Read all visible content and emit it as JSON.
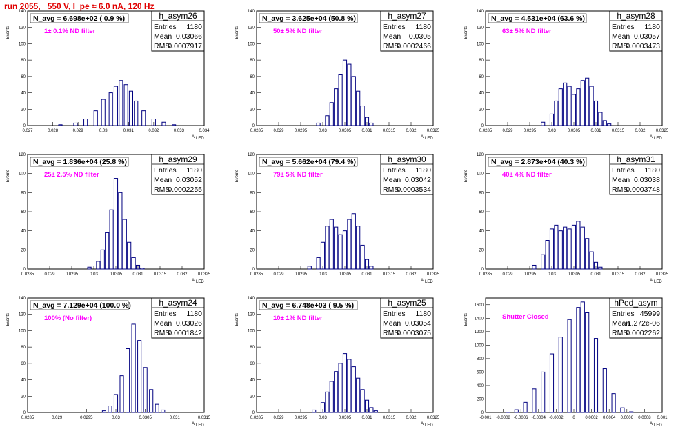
{
  "header": {
    "title": "run 2055,   550 V, I_pe ≈ 6.0 nA, 120 Hz"
  },
  "axis": {
    "xlabel": "A",
    "xlabel_sub": "LED",
    "ylabel": "Events"
  },
  "stat_labels": {
    "entries": "Entries",
    "mean": "Mean",
    "rms": "RMS"
  },
  "chart_data": [
    {
      "type": "bar",
      "name": "h_asym26",
      "navg": "N_avg = 6.698e+02 ( 0.9 %)",
      "filter": "1± 0.1% ND filter",
      "entries": "1180",
      "mean": "0.03066",
      "rms": "0.0007917",
      "xlim": [
        0.027,
        0.034
      ],
      "xticks": [
        "0.027",
        "0.028",
        "0.029",
        "0.03",
        "0.031",
        "0.032",
        "0.033",
        "0.034"
      ],
      "ylim": [
        0,
        140
      ],
      "yticks": [
        "0",
        "20",
        "40",
        "60",
        "80",
        "100",
        "120",
        "140"
      ],
      "values": [
        [
          0.0283,
          1
        ],
        [
          0.0289,
          3
        ],
        [
          0.0293,
          8
        ],
        [
          0.0297,
          18
        ],
        [
          0.03,
          32
        ],
        [
          0.0303,
          40
        ],
        [
          0.0305,
          48
        ],
        [
          0.0307,
          55
        ],
        [
          0.0309,
          50
        ],
        [
          0.0311,
          42
        ],
        [
          0.0313,
          30
        ],
        [
          0.0316,
          18
        ],
        [
          0.032,
          8
        ],
        [
          0.0324,
          4
        ],
        [
          0.0328,
          1
        ]
      ]
    },
    {
      "type": "bar",
      "name": "h_asym27",
      "navg": "N_avg = 3.625e+04 (50.8 %)",
      "filter": "50± 5% ND filter",
      "entries": "1180",
      "mean": "0.0305",
      "rms": "0.0002466",
      "xlim": [
        0.0285,
        0.0325
      ],
      "xticks": [
        "0.0285",
        "0.029",
        "0.0295",
        "0.03",
        "0.0305",
        "0.031",
        "0.0315",
        "0.032",
        "0.0325"
      ],
      "ylim": [
        0,
        140
      ],
      "yticks": [
        "0",
        "20",
        "40",
        "60",
        "80",
        "100",
        "120",
        "140"
      ],
      "values": [
        [
          0.0299,
          3
        ],
        [
          0.0301,
          12
        ],
        [
          0.0302,
          28
        ],
        [
          0.0303,
          45
        ],
        [
          0.0304,
          62
        ],
        [
          0.0305,
          80
        ],
        [
          0.0306,
          75
        ],
        [
          0.0307,
          60
        ],
        [
          0.0308,
          42
        ],
        [
          0.0309,
          24
        ],
        [
          0.031,
          10
        ],
        [
          0.0311,
          3
        ]
      ]
    },
    {
      "type": "bar",
      "name": "h_asym28",
      "navg": "N_avg = 4.531e+04 (63.6 %)",
      "filter": "63± 5% ND filter",
      "entries": "1180",
      "mean": "0.03057",
      "rms": "0.0003473",
      "xlim": [
        0.0285,
        0.0325
      ],
      "xticks": [
        "0.0285",
        "0.029",
        "0.0295",
        "0.03",
        "0.0305",
        "0.031",
        "0.0315",
        "0.032",
        "0.0325"
      ],
      "ylim": [
        0,
        140
      ],
      "yticks": [
        "0",
        "20",
        "40",
        "60",
        "80",
        "100",
        "120",
        "140"
      ],
      "values": [
        [
          0.0298,
          4
        ],
        [
          0.03,
          14
        ],
        [
          0.0301,
          30
        ],
        [
          0.0302,
          45
        ],
        [
          0.0303,
          52
        ],
        [
          0.0304,
          48
        ],
        [
          0.0305,
          38
        ],
        [
          0.0306,
          45
        ],
        [
          0.0307,
          55
        ],
        [
          0.0308,
          58
        ],
        [
          0.0309,
          48
        ],
        [
          0.031,
          30
        ],
        [
          0.0311,
          16
        ],
        [
          0.0312,
          6
        ],
        [
          0.0313,
          2
        ]
      ]
    },
    {
      "type": "bar",
      "name": "h_asym29",
      "navg": "N_avg = 1.836e+04 (25.8 %)",
      "filter": "25± 2.5% ND filter",
      "entries": "1180",
      "mean": "0.03052",
      "rms": "0.0002255",
      "xlim": [
        0.0285,
        0.0325
      ],
      "xticks": [
        "0.0285",
        "0.029",
        "0.0295",
        "0.03",
        "0.0305",
        "0.031",
        "0.0315",
        "0.032",
        "0.0325"
      ],
      "ylim": [
        0,
        120
      ],
      "yticks": [
        "0",
        "20",
        "40",
        "60",
        "80",
        "100",
        "120"
      ],
      "values": [
        [
          0.0299,
          2
        ],
        [
          0.0301,
          8
        ],
        [
          0.0302,
          20
        ],
        [
          0.0303,
          38
        ],
        [
          0.0304,
          62
        ],
        [
          0.0305,
          95
        ],
        [
          0.0306,
          80
        ],
        [
          0.0307,
          52
        ],
        [
          0.0308,
          28
        ],
        [
          0.0309,
          12
        ],
        [
          0.031,
          4
        ],
        [
          0.0311,
          1
        ]
      ]
    },
    {
      "type": "bar",
      "name": "h_asym30",
      "navg": "N_avg = 5.662e+04 (79.4 %)",
      "filter": "79± 5% ND filter",
      "entries": "1180",
      "mean": "0.03042",
      "rms": "0.0003534",
      "xlim": [
        0.0285,
        0.0325
      ],
      "xticks": [
        "0.0285",
        "0.029",
        "0.0295",
        "0.03",
        "0.0305",
        "0.031",
        "0.0315",
        "0.032",
        "0.0325"
      ],
      "ylim": [
        0,
        120
      ],
      "yticks": [
        "0",
        "20",
        "40",
        "60",
        "80",
        "100",
        "120"
      ],
      "values": [
        [
          0.0297,
          3
        ],
        [
          0.0299,
          12
        ],
        [
          0.03,
          28
        ],
        [
          0.0301,
          45
        ],
        [
          0.0302,
          52
        ],
        [
          0.0303,
          44
        ],
        [
          0.0304,
          36
        ],
        [
          0.0305,
          40
        ],
        [
          0.0306,
          52
        ],
        [
          0.0307,
          58
        ],
        [
          0.0308,
          45
        ],
        [
          0.0309,
          25
        ],
        [
          0.031,
          10
        ],
        [
          0.0311,
          3
        ]
      ]
    },
    {
      "type": "bar",
      "name": "h_asym31",
      "navg": "N_avg = 2.873e+04 (40.3 %)",
      "filter": "40± 4% ND filter",
      "entries": "1180",
      "mean": "0.03038",
      "rms": "0.0003748",
      "xlim": [
        0.0285,
        0.0325
      ],
      "xticks": [
        "0.0285",
        "0.029",
        "0.0295",
        "0.03",
        "0.0305",
        "0.031",
        "0.0315",
        "0.032",
        "0.0325"
      ],
      "ylim": [
        0,
        120
      ],
      "yticks": [
        "0",
        "20",
        "40",
        "60",
        "80",
        "100",
        "120"
      ],
      "values": [
        [
          0.0296,
          4
        ],
        [
          0.0298,
          15
        ],
        [
          0.0299,
          30
        ],
        [
          0.03,
          42
        ],
        [
          0.0301,
          46
        ],
        [
          0.0302,
          40
        ],
        [
          0.0303,
          44
        ],
        [
          0.0304,
          42
        ],
        [
          0.0305,
          46
        ],
        [
          0.0306,
          50
        ],
        [
          0.0307,
          44
        ],
        [
          0.0308,
          32
        ],
        [
          0.0309,
          18
        ],
        [
          0.031,
          7
        ],
        [
          0.0311,
          2
        ]
      ]
    },
    {
      "type": "bar",
      "name": "h_asym24",
      "navg": "N_avg = 7.129e+04 (100.0 %)",
      "filter": "100% (No filter)",
      "entries": "1180",
      "mean": "0.03026",
      "rms": "0.0001842",
      "xlim": [
        0.0285,
        0.0315
      ],
      "xticks": [
        "0.0285",
        "0.029",
        "0.0295",
        "0.03",
        "0.0305",
        "0.031",
        "0.0315"
      ],
      "ylim": [
        0,
        140
      ],
      "yticks": [
        "0",
        "20",
        "40",
        "60",
        "80",
        "100",
        "120",
        "140"
      ],
      "values": [
        [
          0.0298,
          2
        ],
        [
          0.0299,
          8
        ],
        [
          0.03,
          22
        ],
        [
          0.0301,
          45
        ],
        [
          0.0302,
          78
        ],
        [
          0.0303,
          108
        ],
        [
          0.0304,
          88
        ],
        [
          0.0305,
          55
        ],
        [
          0.0306,
          28
        ],
        [
          0.0307,
          10
        ],
        [
          0.0308,
          3
        ]
      ]
    },
    {
      "type": "bar",
      "name": "h_asym25",
      "navg": "N_avg = 6.748e+03 ( 9.5 %)",
      "filter": "10± 1% ND filter",
      "entries": "1180",
      "mean": "0.03054",
      "rms": "0.0003075",
      "xlim": [
        0.0285,
        0.0325
      ],
      "xticks": [
        "0.0285",
        "0.029",
        "0.0295",
        "0.03",
        "0.0305",
        "0.031",
        "0.0315",
        "0.032",
        "0.0325"
      ],
      "ylim": [
        0,
        140
      ],
      "yticks": [
        "0",
        "20",
        "40",
        "60",
        "80",
        "100",
        "120",
        "140"
      ],
      "values": [
        [
          0.0298,
          3
        ],
        [
          0.03,
          12
        ],
        [
          0.0301,
          25
        ],
        [
          0.0302,
          38
        ],
        [
          0.0303,
          50
        ],
        [
          0.0304,
          60
        ],
        [
          0.0305,
          72
        ],
        [
          0.0306,
          65
        ],
        [
          0.0307,
          56
        ],
        [
          0.0308,
          42
        ],
        [
          0.0309,
          28
        ],
        [
          0.031,
          15
        ],
        [
          0.0311,
          6
        ],
        [
          0.0312,
          2
        ]
      ]
    },
    {
      "type": "bar",
      "name": "hPed_asym",
      "navg": "",
      "filter": "Shutter Closed",
      "entries": "45999",
      "mean": "-1.272e-06",
      "rms": "0.0002262",
      "xlim": [
        -0.001,
        0.001
      ],
      "xticks": [
        "-0.001",
        "-0.0008",
        "-0.0006",
        "-0.0004",
        "-0.0002",
        "0",
        "0.0002",
        "0.0004",
        "0.0006",
        "0.0008",
        "0.001"
      ],
      "ylim": [
        0,
        1700
      ],
      "yticks": [
        "0",
        "200",
        "400",
        "600",
        "800",
        "1000",
        "1200",
        "1400",
        "1600"
      ],
      "values": [
        [
          -0.00075,
          5
        ],
        [
          -0.00065,
          40
        ],
        [
          -0.00055,
          150
        ],
        [
          -0.00045,
          350
        ],
        [
          -0.00035,
          600
        ],
        [
          -0.00025,
          870
        ],
        [
          -0.00015,
          1120
        ],
        [
          -5e-05,
          1380
        ],
        [
          5e-05,
          1560
        ],
        [
          0.0001,
          1640
        ],
        [
          0.00015,
          1480
        ],
        [
          0.00025,
          1100
        ],
        [
          0.00035,
          650
        ],
        [
          0.00045,
          280
        ],
        [
          0.00055,
          70
        ],
        [
          0.00065,
          10
        ]
      ]
    }
  ]
}
